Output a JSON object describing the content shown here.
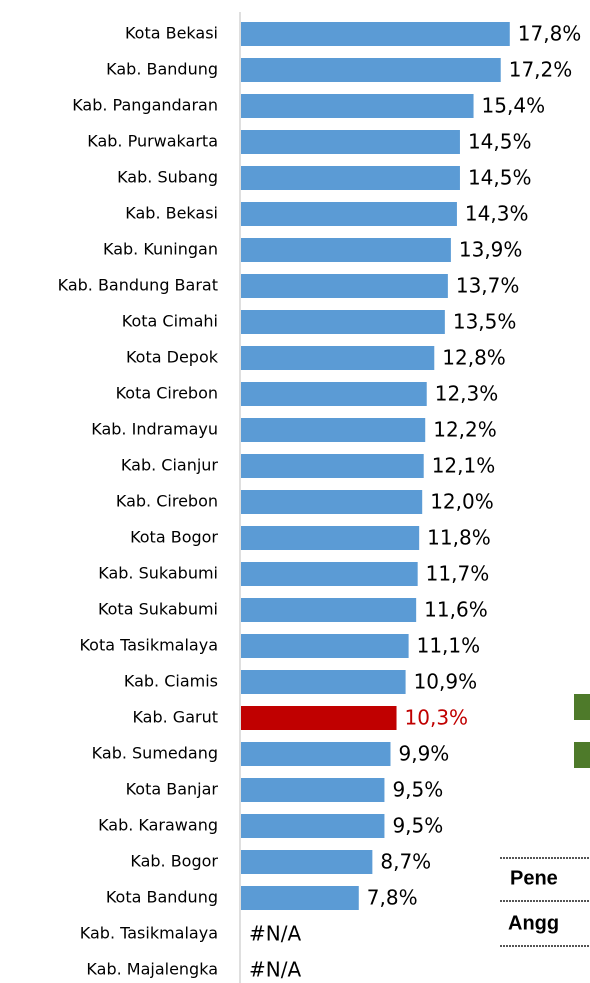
{
  "chart_data": {
    "type": "barh",
    "categories": [
      "Kota Bekasi",
      "Kab. Bandung",
      "Kab. Pangandaran",
      "Kab. Purwakarta",
      "Kab. Subang",
      "Kab. Bekasi",
      "Kab. Kuningan",
      "Kab. Bandung Barat",
      "Kota Cimahi",
      "Kota Depok",
      "Kota Cirebon",
      "Kab. Indramayu",
      "Kab. Cianjur",
      "Kab. Cirebon",
      "Kota Bogor",
      "Kab. Sukabumi",
      "Kota Sukabumi",
      "Kota Tasikmalaya",
      "Kab. Ciamis",
      "Kab. Garut",
      "Kab. Sumedang",
      "Kota Banjar",
      "Kab. Karawang",
      "Kab. Bogor",
      "Kota Bandung",
      "Kab. Tasikmalaya",
      "Kab. Majalengka"
    ],
    "values": [
      17.8,
      17.2,
      15.4,
      14.5,
      14.5,
      14.3,
      13.9,
      13.7,
      13.5,
      12.8,
      12.3,
      12.2,
      12.1,
      12.0,
      11.8,
      11.7,
      11.6,
      11.1,
      10.9,
      10.3,
      9.9,
      9.5,
      9.5,
      8.7,
      7.8,
      null,
      null
    ],
    "value_labels": [
      "17,8%",
      "17,2%",
      "15,4%",
      "14,5%",
      "14,5%",
      "14,3%",
      "13,9%",
      "13,7%",
      "13,5%",
      "12,8%",
      "12,3%",
      "12,2%",
      "12,1%",
      "12,0%",
      "11,8%",
      "11,7%",
      "11,6%",
      "11,1%",
      "10,9%",
      "10,3%",
      "9,9%",
      "9,5%",
      "9,5%",
      "8,7%",
      "7,8%",
      "#N/A",
      "#N/A"
    ],
    "colors": [
      "#5b9bd5",
      "#5b9bd5",
      "#5b9bd5",
      "#5b9bd5",
      "#5b9bd5",
      "#5b9bd5",
      "#5b9bd5",
      "#5b9bd5",
      "#5b9bd5",
      "#5b9bd5",
      "#5b9bd5",
      "#5b9bd5",
      "#5b9bd5",
      "#5b9bd5",
      "#5b9bd5",
      "#5b9bd5",
      "#5b9bd5",
      "#5b9bd5",
      "#5b9bd5",
      "#c00000",
      "#5b9bd5",
      "#5b9bd5",
      "#5b9bd5",
      "#5b9bd5",
      "#5b9bd5",
      "#5b9bd5",
      "#5b9bd5"
    ],
    "value_label_colors": [
      "#000000",
      "#000000",
      "#000000",
      "#000000",
      "#000000",
      "#000000",
      "#000000",
      "#000000",
      "#000000",
      "#000000",
      "#000000",
      "#000000",
      "#000000",
      "#000000",
      "#000000",
      "#000000",
      "#000000",
      "#000000",
      "#000000",
      "#c00000",
      "#000000",
      "#000000",
      "#000000",
      "#000000",
      "#000000",
      "#000000",
      "#000000"
    ],
    "xlim": [
      0,
      20
    ],
    "side_texts": [
      "Pene",
      "Angg"
    ]
  }
}
